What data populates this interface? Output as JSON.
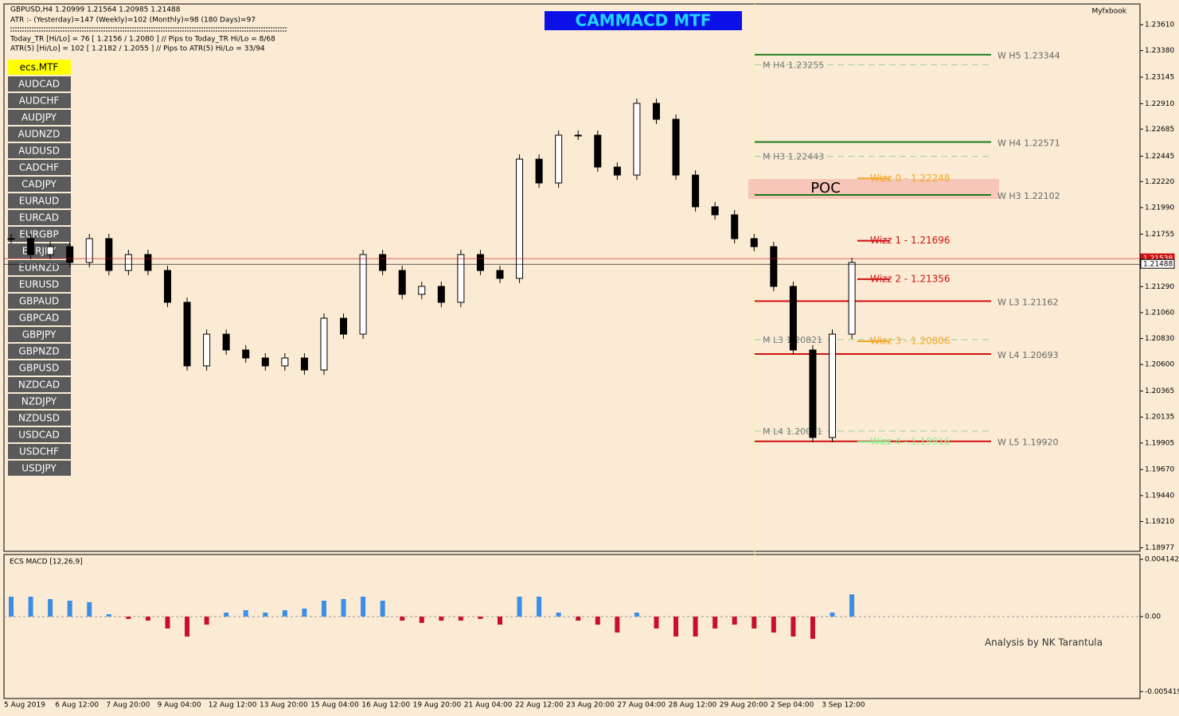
{
  "header": {
    "symbol_line": "GBPUSD,H4  1.20999 1.21564 1.20985 1.21488",
    "atr_line": "ATR :- (Yesterday)=147     (Weekly)=102     (Monthly)=98     (180 Days)=97",
    "today_tr_line": "Today_TR [Hi/Lo] = 76 [ 1.2156 / 1.2080 ]  // Pips to Today_TR Hi/Lo  = 8/68",
    "atr5_line": "ATR(5)      [Hi/Lo] = 102 [ 1.2182 / 1.2055 ]  //  Pips to ATR(5) Hi/Lo     = 33/94",
    "title": "CAMMACD MTF",
    "brand": "Myfxbook"
  },
  "symbols": {
    "active": "ecs.MTF",
    "list": [
      "AUDCAD",
      "AUDCHF",
      "AUDJPY",
      "AUDNZD",
      "AUDUSD",
      "CADCHF",
      "CADJPY",
      "EURAUD",
      "EURCAD",
      "EURGBP",
      "EURJPY",
      "EURNZD",
      "EURUSD",
      "GBPAUD",
      "GBPCAD",
      "GBPJPY",
      "GBPNZD",
      "GBPUSD",
      "NZDCAD",
      "NZDJPY",
      "NZDUSD",
      "USDCAD",
      "USDCHF",
      "USDJPY"
    ]
  },
  "chart_data": [
    {
      "type": "candlestick",
      "values": [
        1.21715,
        1.21574,
        1.21644,
        1.21504,
        1.21715,
        1.21433,
        1.21574,
        1.21433,
        1.21151,
        1.20588,
        1.20869,
        1.20729,
        1.20658,
        1.20588,
        1.20658,
        1.20552,
        1.2101,
        1.20869,
        1.21574,
        1.21433,
        1.21222,
        1.21292,
        1.21151,
        1.21574,
        1.21433,
        1.21363,
        1.22419,
        1.22208,
        1.22631,
        1.22631,
        1.22349,
        1.22278,
        1.22913,
        1.22772,
        1.22278,
        1.21997,
        1.21926,
        1.21715,
        1.21644,
        1.21292,
        1.20729,
        1.19954,
        1.20869,
        1.21504
      ],
      "color_up": "#ffffff",
      "color_down": "#000000",
      "ylim": [
        1.18946,
        1.23793
      ],
      "yticks": [
        {
          "value": 1.2361,
          "label": "1.23610"
        },
        1.23145,
        {
          "value": 1.2338,
          "label": "1.23380"
        },
        {
          "value": 1.2291,
          "label": "1.22910"
        },
        1.22685,
        1.22445,
        {
          "value": 1.2222,
          "label": "1.22220"
        },
        {
          "value": 1.2199,
          "label": "1.21990"
        },
        1.21755,
        {
          "value": 1.2129,
          "label": "1.21290"
        },
        {
          "value": 1.2106,
          "label": "1.21060"
        },
        {
          "value": 1.2083,
          "label": "1.20830"
        },
        {
          "value": 1.206,
          "label": "1.20600"
        },
        1.20365,
        1.20135,
        1.19905,
        {
          "value": 1.1967,
          "label": "1.19670"
        },
        {
          "value": 1.1944,
          "label": "1.19440"
        },
        {
          "value": 1.1921,
          "label": "1.19210"
        },
        1.18977
      ],
      "price_markers": [
        1.21538,
        1.21488
      ],
      "x_labels": [
        "5 Aug 2019",
        "6 Aug 12:00",
        "7 Aug 20:00",
        "9 Aug 04:00",
        "12 Aug 12:00",
        "13 Aug 20:00",
        "15 Aug 04:00",
        "16 Aug 12:00",
        "19 Aug 20:00",
        "21 Aug 04:00",
        "22 Aug 12:00",
        "23 Aug 20:00",
        "27 Aug 04:00",
        "28 Aug 12:00",
        "29 Aug 20:00",
        "2 Sep 04:00",
        "3 Sep 12:00"
      ],
      "levels": [
        {
          "label": "W H5 1.23344",
          "value": 1.23344,
          "color": "#1a7a1a"
        },
        {
          "label": "W H4 1.22571",
          "value": 1.22571,
          "color": "#1a7a1a"
        },
        {
          "label": "W H3 1.22102",
          "value": 1.22102,
          "color": "#1a7a1a"
        },
        {
          "label": "W L3 1.21162",
          "value": 1.21162,
          "color": "#d01010"
        },
        {
          "label": "W L4 1.20693",
          "value": 1.20693,
          "color": "#d01010"
        },
        {
          "label": "W L5 1.19920",
          "value": 1.1992,
          "color": "#d01010"
        }
      ],
      "monthly_levels": [
        {
          "label": "M H4 1.23255",
          "value": 1.23255
        },
        {
          "label": "M H3 1.22443",
          "value": 1.22443
        },
        {
          "label": "M L3 1.20821",
          "value": 1.20821
        },
        {
          "label": "M L4 1.20011",
          "value": 1.20011
        }
      ],
      "wizz": [
        {
          "label": "Wizz 0 - 1.22248",
          "value": 1.22248,
          "color": "#f5a623"
        },
        {
          "label": "Wizz 1 - 1.21696",
          "value": 1.21696,
          "color": "#d01010"
        },
        {
          "label": "Wizz 2 - 1.21356",
          "value": 1.21356,
          "color": "#d01010"
        },
        {
          "label": "Wizz 3 - 1.20806",
          "value": 1.20806,
          "color": "#f5a623"
        },
        {
          "label": "Wizz 4 - 1.19916",
          "value": 1.19916,
          "color": "#90ee90"
        }
      ],
      "poc": "POC"
    },
    {
      "type": "bar",
      "title": "ECS MACD [12,26,9]",
      "values": [
        0.00144,
        0.00144,
        0.00127,
        0.00115,
        0.00104,
        0.00017,
        -0.00017,
        -0.00029,
        -0.00086,
        -0.00144,
        -0.00058,
        0.00029,
        0.00046,
        0.00029,
        0.00046,
        0.00058,
        0.00115,
        0.00127,
        0.00144,
        0.00115,
        -0.00029,
        -0.00046,
        -0.00029,
        -0.00029,
        -0.00017,
        -0.00058,
        0.00144,
        0.00144,
        0.00029,
        -0.00029,
        -0.00058,
        -0.00115,
        0.00029,
        -0.00086,
        -0.00144,
        -0.00144,
        -0.00086,
        -0.00058,
        -0.00086,
        -0.00115,
        -0.00144,
        -0.00161,
        0.00029,
        0.00161
      ],
      "color_up": "#3a8ee6",
      "color_down": "#c8102e",
      "ylim": [
        -0.00592,
        0.00449
      ],
      "yticks": [
        0.0041426,
        {
          "value": 0,
          "label": "0.00"
        },
        -0.005419
      ],
      "annotation": "Analysis by NK Tarantula"
    }
  ]
}
